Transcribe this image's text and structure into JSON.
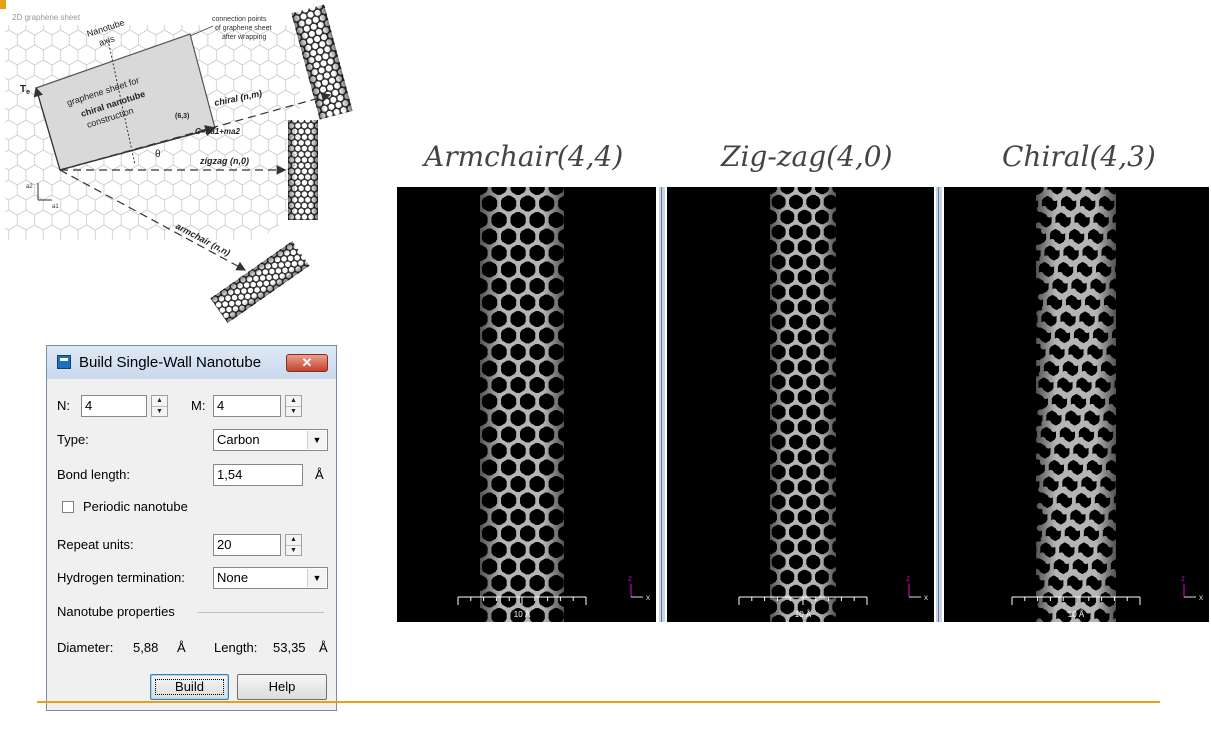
{
  "diagram": {
    "sheet_label": "2D graphene sheet",
    "nanotube_axis_label_1": "Nanotube",
    "nanotube_axis_label_2": "axis",
    "connection_label_1": "connection points",
    "connection_label_2": "of graphene sheet",
    "connection_label_3": "after wrapping",
    "sheet_caption_1": "graphene sheet for",
    "sheet_caption_2": "chiral nanotube",
    "sheet_caption_3": "construction",
    "t_label": "T",
    "t_sub": "e",
    "point_label": "(6,3)",
    "chiral_vector": "C=na1+ma2",
    "chiral_label": "chiral (n,m)",
    "theta": "θ",
    "zigzag_label": "zigzag (n,0)",
    "armchair_label": "armchair (n,n)",
    "a2_label": "a2",
    "a1_label": "a1"
  },
  "titles": {
    "armchair": "Armchair(4,4)",
    "zigzag": "Zig-zag(4,0)",
    "chiral": "Chiral(4,3)"
  },
  "viewports": {
    "scale_label": "10 Å",
    "axis_z": "z",
    "axis_x": "x"
  },
  "dialog": {
    "title": "Build Single-Wall Nanotube",
    "close_glyph": "✕",
    "n_label": "N:",
    "n_value": "4",
    "m_label": "M:",
    "m_value": "4",
    "type_label": "Type:",
    "type_value": "Carbon",
    "bond_label": "Bond length:",
    "bond_value": "1,54",
    "bond_unit": "Å",
    "periodic_label": "Periodic nanotube",
    "repeat_label": "Repeat units:",
    "repeat_value": "20",
    "hydrogen_label": "Hydrogen termination:",
    "hydrogen_value": "None",
    "properties_label": "Nanotube properties",
    "diameter_label": "Diameter:",
    "diameter_value": "5,88",
    "diameter_unit": "Å",
    "length_label": "Length:",
    "length_value": "53,35",
    "length_unit": "Å",
    "build_button": "Build",
    "help_button": "Help"
  },
  "colors": {
    "accent": "#e3a21a",
    "viewport_bg": "#000000",
    "atom": "#b5b5b5",
    "axis_magenta": "#c000c0"
  }
}
